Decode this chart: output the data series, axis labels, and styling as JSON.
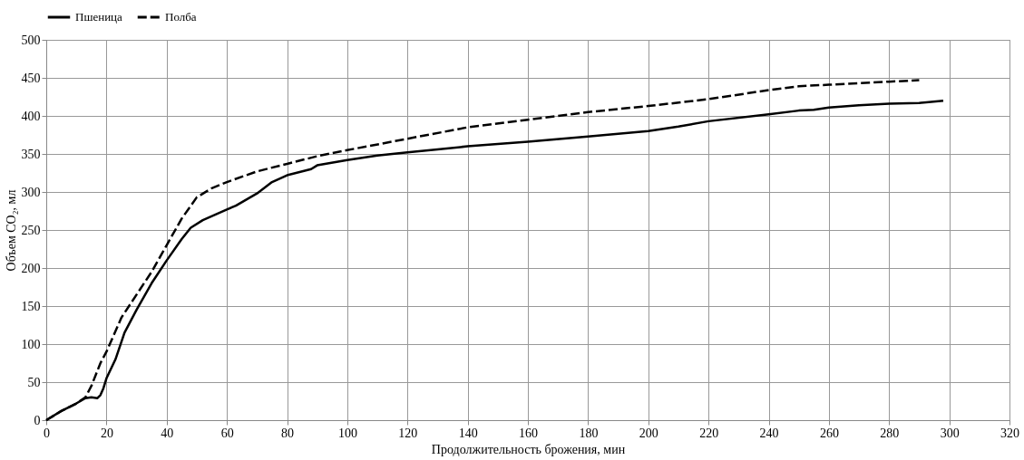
{
  "chart_data": {
    "type": "line",
    "xlabel": "Продолжительность брожения, мин",
    "ylabel": "Объем CO₂, мл",
    "xlim": [
      0,
      320
    ],
    "xticks": [
      0,
      20,
      40,
      60,
      80,
      100,
      120,
      140,
      160,
      180,
      200,
      220,
      240,
      260,
      280,
      300,
      320
    ],
    "ylim": [
      0,
      500
    ],
    "yticks": [
      0,
      50,
      100,
      150,
      200,
      250,
      300,
      350,
      400,
      450,
      500
    ],
    "grid": true,
    "legend": "top",
    "marker": "none",
    "series": [
      {
        "name": "Пшеница",
        "color": "#000000",
        "line_style": "solid",
        "x": [
          0,
          5,
          10,
          13,
          15,
          17,
          18,
          19,
          20,
          23,
          26,
          30,
          35,
          40,
          45,
          48,
          52,
          60,
          63,
          70,
          75,
          80,
          88,
          90,
          100,
          110,
          120,
          130,
          140,
          160,
          180,
          200,
          210,
          220,
          240,
          250,
          255,
          260,
          270,
          280,
          290,
          298
        ],
        "values": [
          0,
          12,
          22,
          29,
          30,
          29,
          33,
          42,
          55,
          80,
          115,
          145,
          180,
          210,
          238,
          253,
          263,
          277,
          282,
          298,
          313,
          322,
          330,
          335,
          342,
          348,
          352,
          356,
          360,
          366,
          373,
          380,
          386,
          393,
          402,
          407,
          408,
          411,
          414,
          416,
          417,
          420
        ]
      },
      {
        "name": "Полба",
        "color": "#000000",
        "line_style": "dashed",
        "x": [
          0,
          5,
          10,
          13,
          15,
          18,
          20,
          25,
          30,
          35,
          40,
          45,
          50,
          55,
          60,
          70,
          80,
          90,
          100,
          120,
          140,
          160,
          180,
          200,
          220,
          240,
          250,
          260,
          280,
          290
        ],
        "values": [
          0,
          12,
          22,
          30,
          45,
          75,
          90,
          135,
          165,
          195,
          230,
          265,
          293,
          305,
          313,
          327,
          337,
          347,
          355,
          370,
          385,
          395,
          405,
          413,
          422,
          434,
          439,
          441,
          445,
          447
        ]
      }
    ]
  }
}
